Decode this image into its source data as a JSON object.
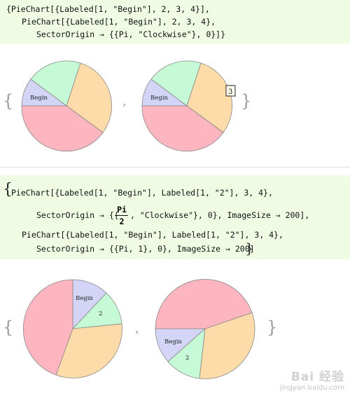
{
  "cell1": {
    "line1": "{PieChart[{Labeled[1, \"Begin\"], 2, 3, 4}],",
    "line2": "PieChart[{Labeled[1, \"Begin\"], 2, 3, 4},",
    "line3": "SectorOrigin → {{Pi, \"Clockwise\"}, 0}]}"
  },
  "cell2": {
    "line1": "PieChart[{Labeled[1, \"Begin\"], Labeled[1, \"2\"], 3, 4},",
    "line2a": "SectorOrigin → {{",
    "frac_num": "Pi",
    "frac_den": "2",
    "line2b": ", \"Clockwise\"}, 0}, ImageSize → 200],",
    "line3": "PieChart[{Labeled[1, \"Begin\"], Labeled[1, \"2\"], 3, 4},",
    "line4": "SectorOrigin → {{Pi, 1}, 0}, ImageSize → 200]"
  },
  "output1": {
    "open_brace": "{",
    "comma": ",",
    "close_brace": "}",
    "pie1_label": "Begin",
    "pie2_label": "Begin",
    "pie2_tooltip": "3"
  },
  "output2": {
    "open_brace": "{",
    "comma": ",",
    "close_brace": "}",
    "pie1_label_begin": "Begin",
    "pie1_label_2": "2",
    "pie2_label_begin": "Begin",
    "pie2_label_2": "2"
  },
  "watermark": {
    "brand": "Bai 经验",
    "url": "jingyan.baidu.com"
  },
  "colors": {
    "slice_blue": "#d3d4f6",
    "slice_green": "#c6f9d6",
    "slice_orange": "#fddcaa",
    "slice_pink": "#fdb6bf",
    "cell_bg": "#f0fbe4"
  }
}
